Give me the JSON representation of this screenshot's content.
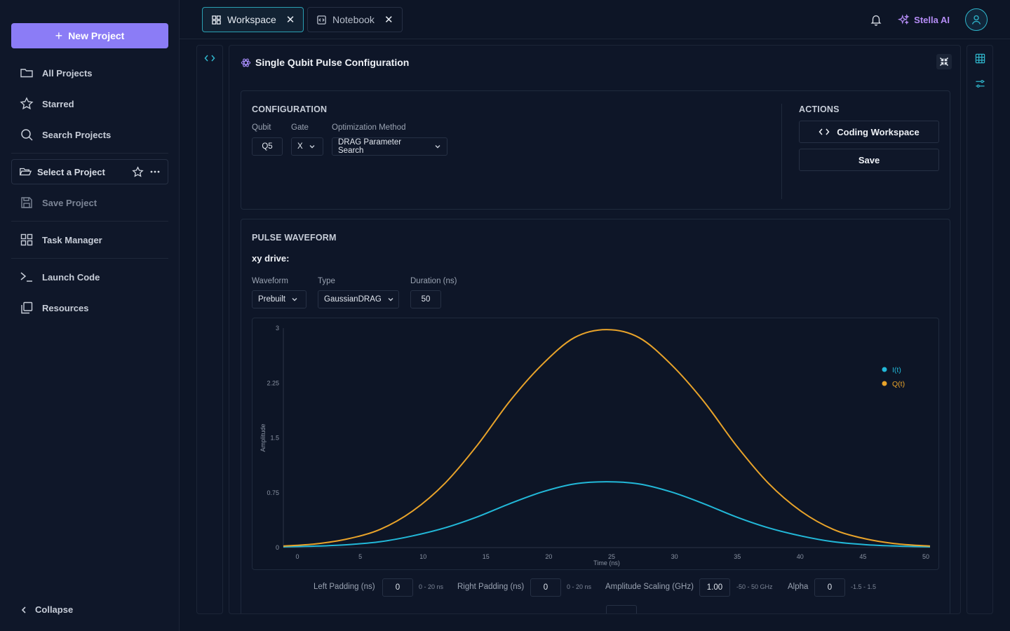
{
  "sidebar": {
    "new_project": "New Project",
    "items": [
      {
        "label": "All Projects",
        "icon": "folder-icon"
      },
      {
        "label": "Starred",
        "icon": "star-icon"
      },
      {
        "label": "Search Projects",
        "icon": "search-icon"
      }
    ],
    "select_project": "Select a Project",
    "save_project": "Save Project",
    "task_manager": "Task Manager",
    "launch_code": "Launch Code",
    "resources": "Resources",
    "collapse": "Collapse"
  },
  "tabs": [
    {
      "label": "Workspace",
      "active": true
    },
    {
      "label": "Notebook",
      "active": false
    }
  ],
  "header": {
    "assistant": "Stella AI"
  },
  "panel": {
    "title": "Single Qubit Pulse Configuration"
  },
  "configuration": {
    "heading": "CONFIGURATION",
    "qubit_label": "Qubit",
    "qubit_value": "Q5",
    "gate_label": "Gate",
    "gate_value": "X",
    "method_label": "Optimization Method",
    "method_value": "DRAG Parameter Search"
  },
  "actions": {
    "heading": "ACTIONS",
    "coding_workspace": "Coding Workspace",
    "save": "Save"
  },
  "waveform": {
    "heading": "PULSE WAVEFORM",
    "drive_label": "xy drive:",
    "waveform_label": "Waveform",
    "waveform_value": "Prebuilt",
    "type_label": "Type",
    "type_value": "GaussianDRAG",
    "duration_label": "Duration (ns)",
    "duration_value": "50"
  },
  "params": {
    "left_padding_label": "Left Padding (ns)",
    "left_padding_value": "0",
    "left_padding_range": "0 - 20 ns",
    "right_padding_label": "Right Padding (ns)",
    "right_padding_value": "0",
    "right_padding_range": "0 - 20 ns",
    "amp_label": "Amplitude Scaling (GHz)",
    "amp_value": "1.00",
    "amp_range": "-50 - 50 GHz",
    "alpha_label": "Alpha",
    "alpha_value": "0",
    "alpha_range": "-1.5 - 1.5"
  },
  "colors": {
    "accent": "#8b7cf6",
    "teal": "#2fb6cc",
    "i_series": "#22b8d8",
    "q_series": "#e8a32a"
  },
  "chart_data": {
    "type": "line",
    "xlabel": "Time (ns)",
    "ylabel": "Amplitude",
    "xlim": [
      0,
      50
    ],
    "ylim": [
      0,
      3
    ],
    "x_ticks": [
      "0",
      "5",
      "10",
      "15",
      "20",
      "25",
      "30",
      "35",
      "40",
      "45",
      "50"
    ],
    "y_ticks": [
      "0",
      "0.75",
      "1.5",
      "2.25",
      "3"
    ],
    "grid": false,
    "legend": "top-right",
    "x": [
      0,
      2.5,
      5,
      7.5,
      10,
      12.5,
      15,
      17.5,
      20,
      22.5,
      25,
      27.5,
      30,
      32.5,
      35,
      37.5,
      40,
      42.5,
      45,
      47.5,
      50
    ],
    "series": [
      {
        "name": "I(t)",
        "color": "#22b8d8",
        "values": [
          0.01,
          0.02,
          0.04,
          0.08,
          0.16,
          0.27,
          0.42,
          0.6,
          0.76,
          0.87,
          0.9,
          0.87,
          0.76,
          0.6,
          0.42,
          0.27,
          0.16,
          0.08,
          0.04,
          0.02,
          0.01
        ]
      },
      {
        "name": "Q(t)",
        "color": "#e8a32a",
        "values": [
          0.02,
          0.05,
          0.12,
          0.25,
          0.5,
          0.88,
          1.4,
          2.0,
          2.5,
          2.87,
          2.98,
          2.87,
          2.5,
          2.0,
          1.4,
          0.88,
          0.5,
          0.25,
          0.12,
          0.05,
          0.02
        ]
      }
    ]
  }
}
